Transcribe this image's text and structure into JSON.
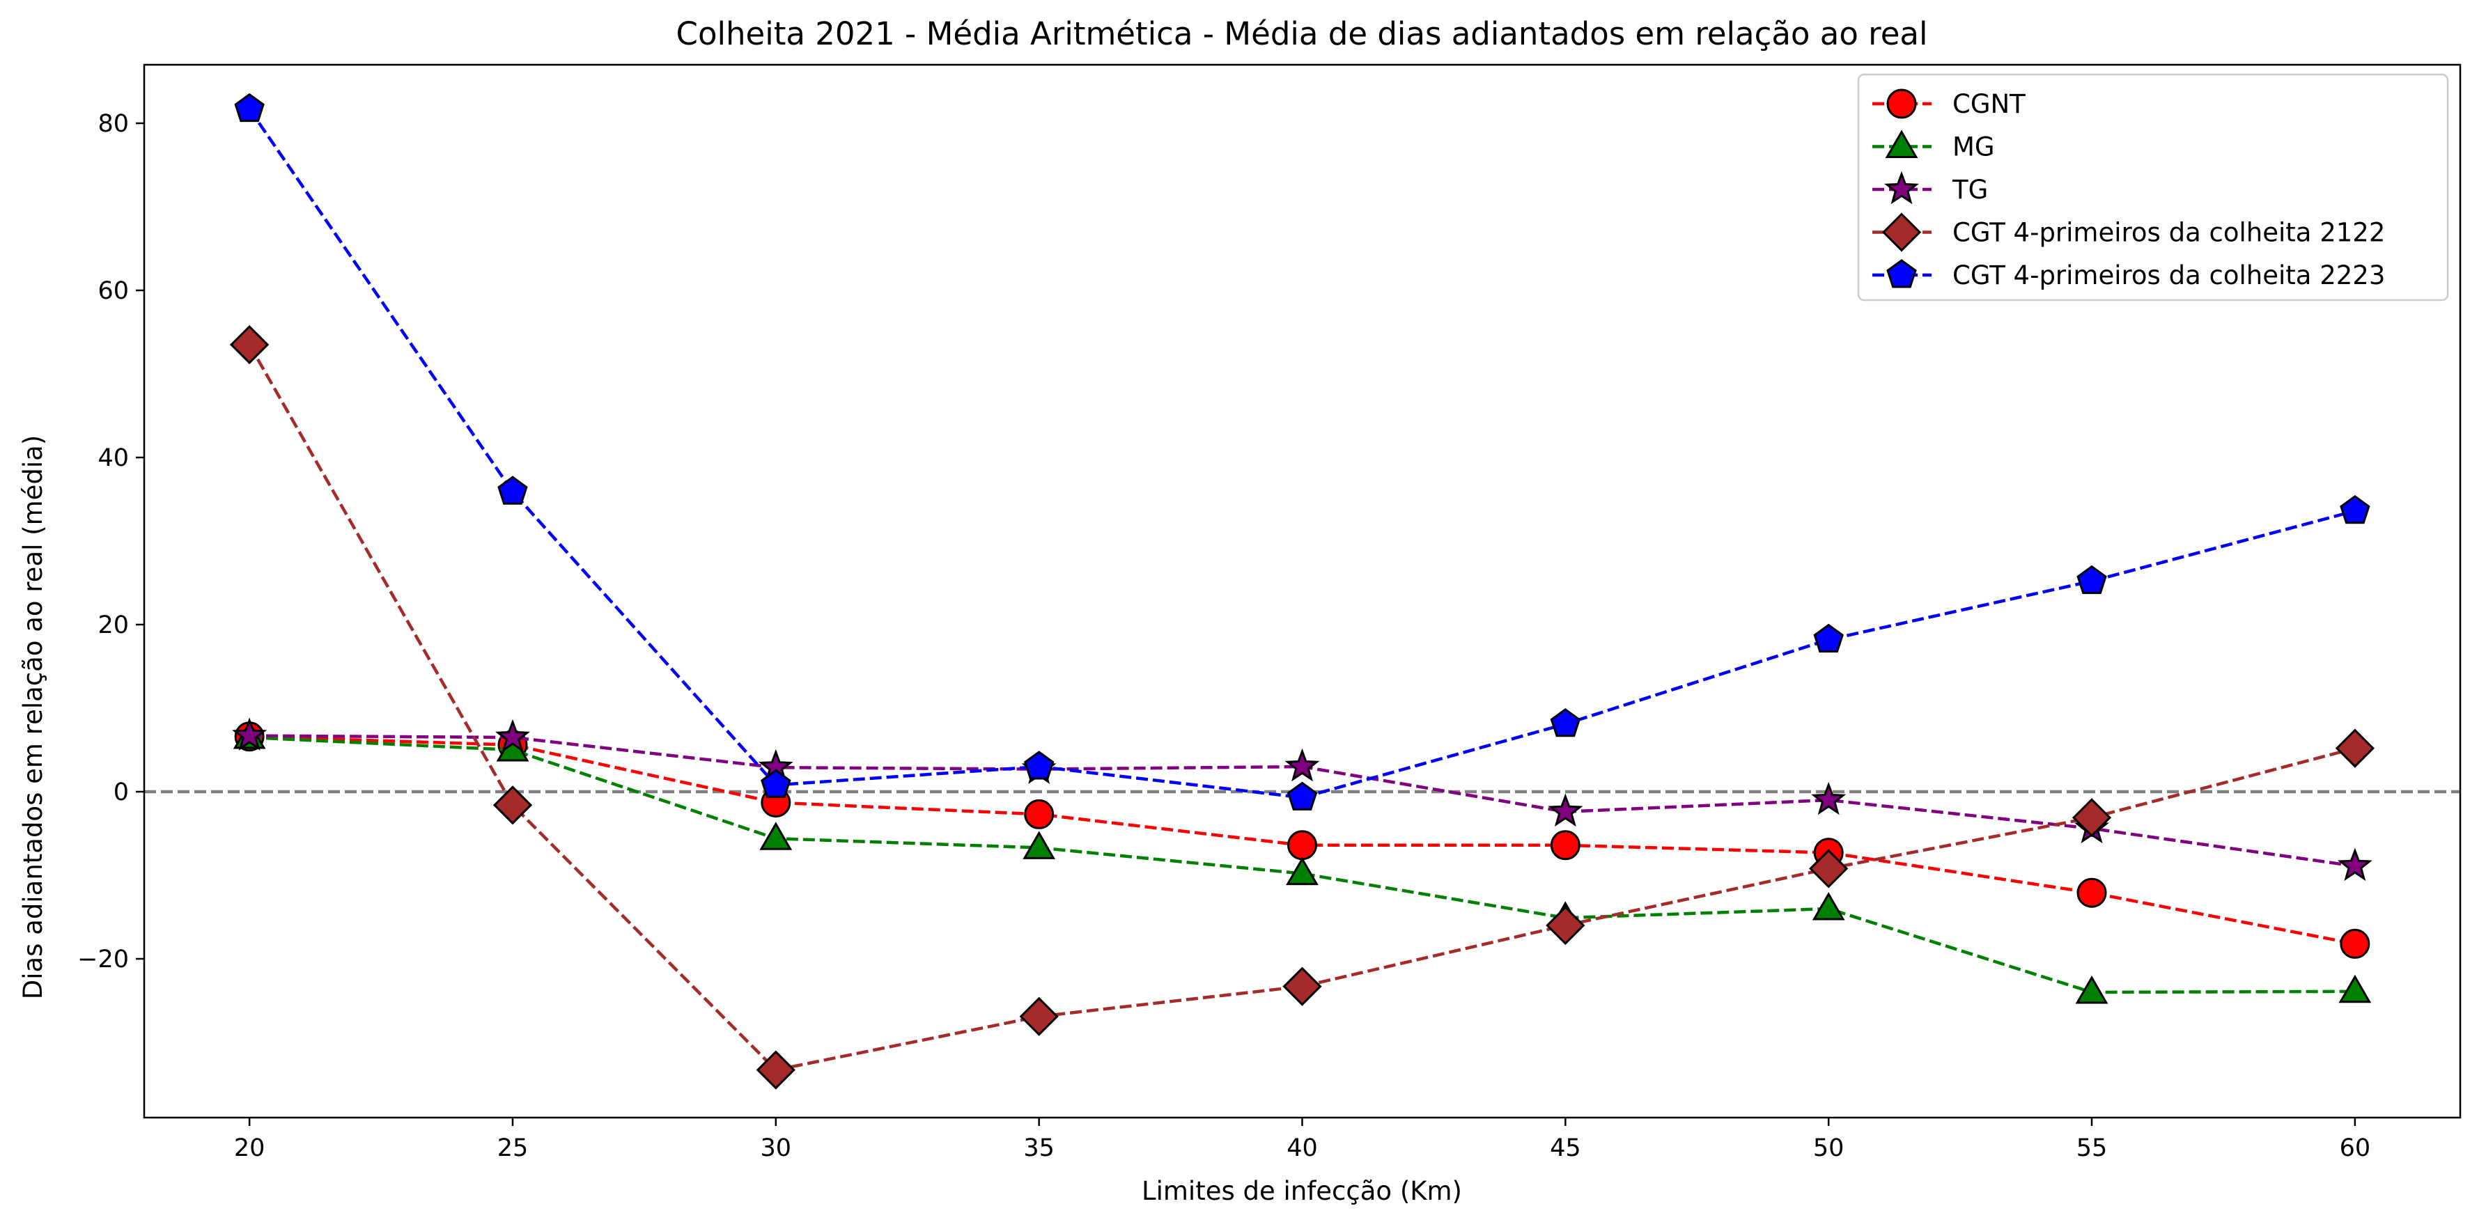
{
  "chart_data": {
    "type": "line",
    "title": "Colheita 2021 - Média Aritmética - Média de dias adiantados em relação ao real",
    "xlabel": "Limites de infecção (Km)",
    "ylabel": "Dias adiantados em relação ao real (média)",
    "x": [
      20,
      25,
      30,
      35,
      40,
      45,
      50,
      55,
      60
    ],
    "xlim": [
      18,
      62
    ],
    "ylim": [
      -39,
      87
    ],
    "xticks": [
      20,
      25,
      30,
      35,
      40,
      45,
      50,
      55,
      60
    ],
    "yticks": [
      -20,
      0,
      20,
      40,
      60,
      80
    ],
    "ytick_labels": [
      "−20",
      "0",
      "20",
      "40",
      "60",
      "80"
    ],
    "reference_line": {
      "y": 0,
      "style": "dashed",
      "color": "#808080"
    },
    "grid": false,
    "legend_position": "top-right",
    "series": [
      {
        "name": "CGNT",
        "color": "#ff0000",
        "marker": "circle",
        "values": [
          6.6,
          5.6,
          -1.3,
          -2.7,
          -6.4,
          -6.4,
          -7.3,
          -12.1,
          -18.2
        ]
      },
      {
        "name": "MG",
        "color": "#008000",
        "marker": "triangle",
        "values": [
          6.5,
          5.0,
          -5.6,
          -6.7,
          -9.8,
          -15.1,
          -14.0,
          -24.0,
          -23.9
        ]
      },
      {
        "name": "TG",
        "color": "#800080",
        "marker": "star",
        "values": [
          6.7,
          6.5,
          2.9,
          2.7,
          3.0,
          -2.4,
          -1.0,
          -4.4,
          -8.9
        ]
      },
      {
        "name": "CGT 4-primeiros da colheita 2122",
        "color": "#a52a2a",
        "marker": "diamond",
        "values": [
          53.5,
          -1.6,
          -33.3,
          -26.9,
          -23.3,
          -16.0,
          -9.2,
          -3.1,
          5.2
        ]
      },
      {
        "name": "CGT 4-primeiros da colheita 2223",
        "color": "#0000ff",
        "marker": "pentagon",
        "values": [
          81.7,
          35.9,
          0.8,
          3.0,
          -0.7,
          8.1,
          18.2,
          25.2,
          33.6
        ]
      }
    ]
  }
}
